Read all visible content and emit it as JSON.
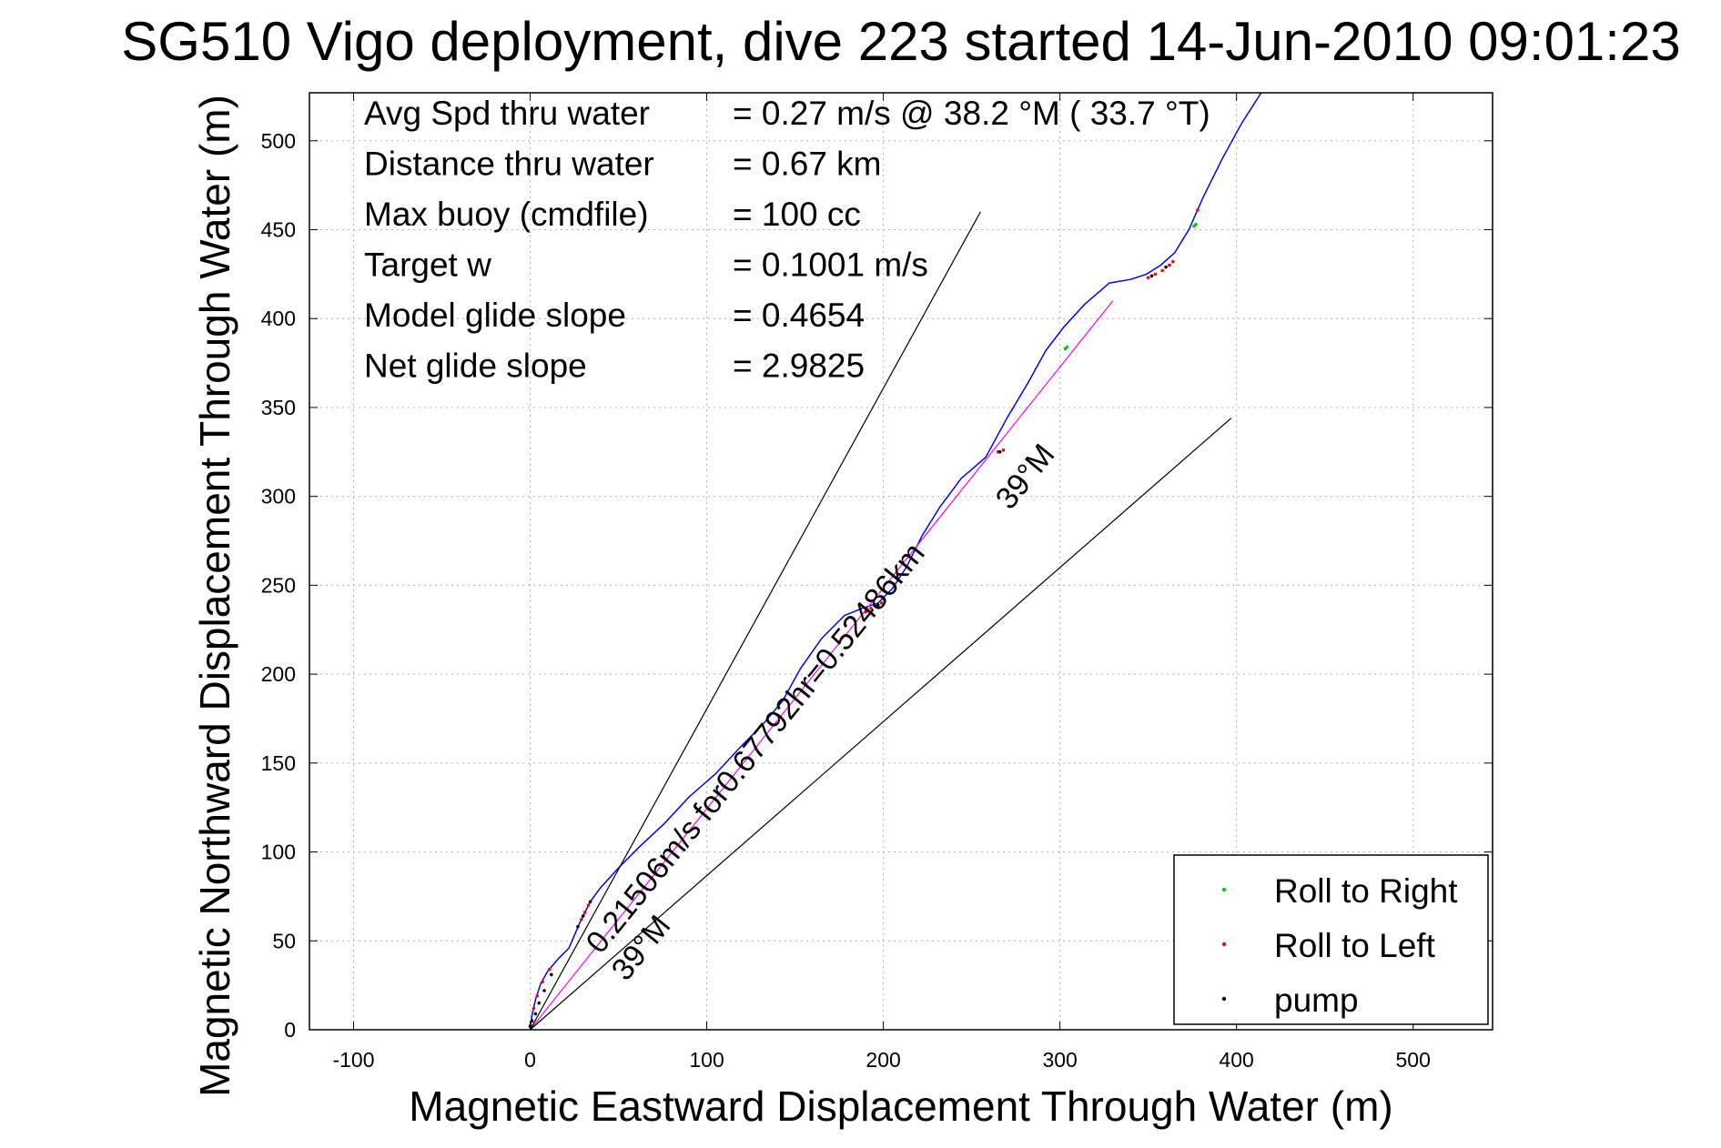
{
  "chart_data": {
    "type": "line",
    "title": "SG510 Vigo deployment, dive 223 started 14-Jun-2010 09:01:23",
    "xlabel": "Magnetic Eastward Displacement Through Water (m)",
    "ylabel": "Magnetic Northward Displacement Through Water (m)",
    "xlim": [
      -125,
      545
    ],
    "ylim": [
      0,
      527
    ],
    "x_ticks": [
      -100,
      0,
      100,
      200,
      300,
      400,
      500
    ],
    "y_ticks": [
      0,
      50,
      100,
      150,
      200,
      250,
      300,
      350,
      400,
      450,
      500
    ],
    "grid": true,
    "stats": [
      {
        "label": "Avg Spd thru water",
        "value": "=  0.27 m/s @  38.2 °M ( 33.7 °T)"
      },
      {
        "label": "Distance thru water",
        "value": "=  0.67 km"
      },
      {
        "label": "Max buoy (cmdfile)",
        "value": "= 100 cc"
      },
      {
        "label": "Target w",
        "value": "= 0.1001 m/s"
      },
      {
        "label": "Model glide slope",
        "value": "= 0.4654"
      },
      {
        "label": "Net glide slope",
        "value": "= 2.9825"
      }
    ],
    "annotations": {
      "main": "0.21506m/s for0.67792hr=0.52486km",
      "heading_lower": "39°M",
      "heading_upper": "39°M"
    },
    "legend": {
      "placement": "bottom-right",
      "entries": [
        {
          "name": "Roll to Right",
          "color": "#00cc00"
        },
        {
          "name": "Roll to Left",
          "color": "#ff0000"
        },
        {
          "name": "pump",
          "color": "#000000"
        }
      ]
    },
    "series": [
      {
        "color": "#0000ff",
        "x": [
          0,
          1,
          3,
          6,
          10,
          16,
          22,
          28,
          34,
          40,
          50,
          62,
          76,
          90,
          105,
          120,
          132,
          143,
          153,
          165,
          178,
          188,
          197,
          205,
          213,
          222,
          232,
          244,
          258,
          270,
          282,
          292,
          302,
          314,
          328,
          340,
          349,
          357,
          365,
          373,
          381,
          392,
          403,
          414
        ],
        "y": [
          0,
          8,
          17,
          26,
          33,
          40,
          46,
          60,
          72,
          80,
          91,
          103,
          116,
          131,
          144,
          160,
          172,
          185,
          203,
          220,
          233,
          237,
          240,
          248,
          260,
          278,
          294,
          310,
          322,
          344,
          364,
          382,
          395,
          408,
          420,
          422,
          425,
          430,
          437,
          450,
          468,
          490,
          510,
          527
        ]
      },
      {
        "color": "#ff00ff",
        "x": [
          0,
          330
        ],
        "y": [
          0,
          410
        ]
      },
      {
        "color": "#000000",
        "x": [
          0,
          255
        ],
        "y": [
          0,
          460
        ]
      },
      {
        "color": "#000000",
        "x": [
          0,
          397
        ],
        "y": [
          0,
          344
        ]
      }
    ],
    "markers": {
      "roll_right": {
        "color": "#00cc00",
        "points": [
          [
            303,
            383
          ],
          [
            304,
            384
          ],
          [
            376,
            452
          ],
          [
            377,
            453
          ]
        ]
      },
      "roll_left": {
        "color": "#ff0000",
        "points": [
          [
            2,
            12
          ],
          [
            4,
            19
          ],
          [
            7,
            27
          ],
          [
            11,
            34
          ],
          [
            29,
            62
          ],
          [
            31,
            66
          ],
          [
            33,
            70
          ],
          [
            190,
            235
          ],
          [
            193,
            237
          ],
          [
            196,
            238
          ],
          [
            199,
            240
          ],
          [
            265,
            325
          ],
          [
            268,
            326
          ],
          [
            350,
            423
          ],
          [
            354,
            425
          ],
          [
            358,
            427
          ],
          [
            362,
            430
          ],
          [
            364,
            432
          ],
          [
            378,
            461
          ]
        ]
      },
      "pump": {
        "color": "#000000",
        "points": [
          [
            0,
            2
          ],
          [
            1,
            5
          ],
          [
            3,
            9
          ],
          [
            5,
            15
          ],
          [
            8,
            22
          ],
          [
            12,
            31
          ],
          [
            27,
            58
          ],
          [
            30,
            64
          ],
          [
            34,
            72
          ],
          [
            191,
            236
          ],
          [
            197,
            239
          ],
          [
            266,
            325
          ],
          [
            352,
            424
          ],
          [
            360,
            429
          ]
        ]
      }
    }
  }
}
